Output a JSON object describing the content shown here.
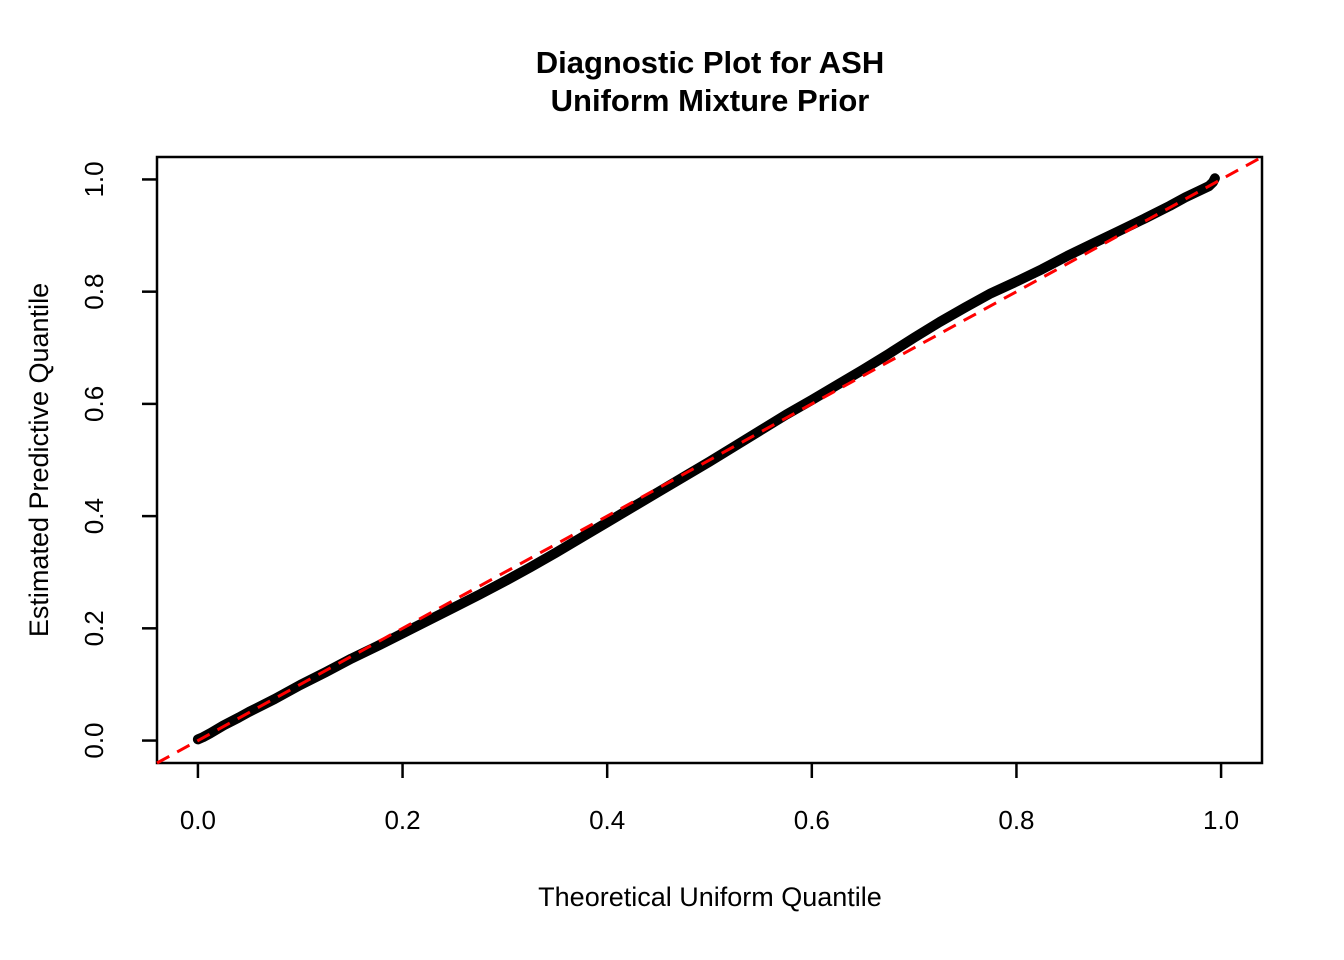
{
  "chart_data": {
    "type": "line",
    "title": "Diagnostic Plot for ASH",
    "subtitle": "Uniform Mixture Prior",
    "xlabel": "Theoretical Uniform Quantile",
    "ylabel": "Estimated Predictive Quantile",
    "xlim": [
      -0.04,
      1.04
    ],
    "ylim": [
      -0.04,
      1.04
    ],
    "grid": false,
    "legend": null,
    "x_ticks": {
      "values": [
        0.0,
        0.2,
        0.4,
        0.6,
        0.8,
        1.0
      ],
      "labels": [
        "0.0",
        "0.2",
        "0.4",
        "0.6",
        "0.8",
        "1.0"
      ]
    },
    "y_ticks": {
      "values": [
        0.0,
        0.2,
        0.4,
        0.6,
        0.8,
        1.0
      ],
      "labels": [
        "0.0",
        "0.2",
        "0.4",
        "0.6",
        "0.8",
        "1.0"
      ]
    },
    "series": [
      {
        "name": "estimated-predictive-quantiles",
        "style": "solid-thick",
        "color": "#000000",
        "points": [
          [
            0.0,
            0.002
          ],
          [
            0.005,
            0.006
          ],
          [
            0.012,
            0.013
          ],
          [
            0.025,
            0.027
          ],
          [
            0.04,
            0.041
          ],
          [
            0.05,
            0.051
          ],
          [
            0.075,
            0.074
          ],
          [
            0.1,
            0.099
          ],
          [
            0.125,
            0.122
          ],
          [
            0.15,
            0.146
          ],
          [
            0.175,
            0.168
          ],
          [
            0.2,
            0.191
          ],
          [
            0.225,
            0.214
          ],
          [
            0.25,
            0.237
          ],
          [
            0.275,
            0.26
          ],
          [
            0.3,
            0.284
          ],
          [
            0.325,
            0.309
          ],
          [
            0.35,
            0.335
          ],
          [
            0.375,
            0.362
          ],
          [
            0.4,
            0.389
          ],
          [
            0.425,
            0.416
          ],
          [
            0.45,
            0.443
          ],
          [
            0.475,
            0.47
          ],
          [
            0.5,
            0.497
          ],
          [
            0.525,
            0.525
          ],
          [
            0.55,
            0.553
          ],
          [
            0.575,
            0.581
          ],
          [
            0.6,
            0.607
          ],
          [
            0.625,
            0.634
          ],
          [
            0.65,
            0.661
          ],
          [
            0.675,
            0.689
          ],
          [
            0.7,
            0.718
          ],
          [
            0.725,
            0.746
          ],
          [
            0.75,
            0.772
          ],
          [
            0.775,
            0.797
          ],
          [
            0.8,
            0.818
          ],
          [
            0.825,
            0.84
          ],
          [
            0.85,
            0.864
          ],
          [
            0.875,
            0.886
          ],
          [
            0.9,
            0.908
          ],
          [
            0.925,
            0.93
          ],
          [
            0.95,
            0.953
          ],
          [
            0.965,
            0.968
          ],
          [
            0.98,
            0.981
          ],
          [
            0.988,
            0.988
          ],
          [
            0.992,
            0.995
          ],
          [
            0.994,
            1.002
          ]
        ]
      },
      {
        "name": "reference-diagonal",
        "style": "dashed",
        "color": "#FF0000",
        "points": [
          [
            -0.04,
            -0.04
          ],
          [
            1.04,
            1.04
          ]
        ]
      }
    ],
    "colors": {
      "curve": "#000000",
      "reference_line": "#FF0000",
      "axis": "#000000",
      "background": "#FFFFFF"
    }
  }
}
